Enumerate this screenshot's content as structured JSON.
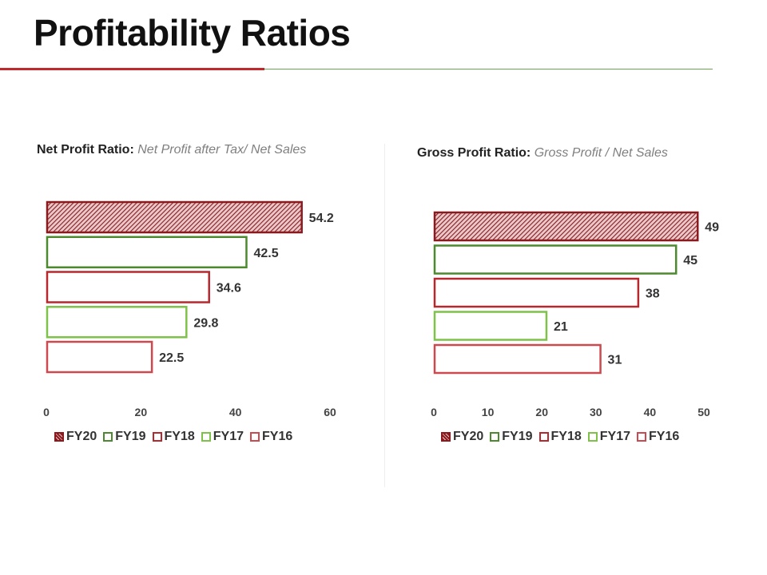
{
  "page": {
    "title": "Profitability Ratios"
  },
  "series_styles": {
    "FY20": {
      "stroke": "#8b1a1f",
      "hatched": true
    },
    "FY19": {
      "stroke": "#4d8a2f",
      "hatched": false
    },
    "FY18": {
      "stroke": "#b7282e",
      "hatched": false
    },
    "FY17": {
      "stroke": "#7fc24a",
      "hatched": false
    },
    "FY16": {
      "stroke": "#cc4a4f",
      "hatched": false
    }
  },
  "chart_data": [
    {
      "type": "bar",
      "orientation": "horizontal",
      "title_label": "Net Profit Ratio:",
      "title_formula": "Net Profit after Tax/ Net Sales",
      "categories": [
        "FY20",
        "FY19",
        "FY18",
        "FY17",
        "FY16"
      ],
      "values": [
        54.2,
        42.5,
        34.6,
        29.8,
        22.5
      ],
      "value_labels": [
        "54.2",
        "42.5",
        "34.6",
        "29.8",
        "22.5"
      ],
      "xlim": [
        0,
        60
      ],
      "xticks": [
        "0",
        "20",
        "40",
        "60"
      ],
      "grid": false,
      "legend": [
        "FY20",
        "FY19",
        "FY18",
        "FY17",
        "FY16"
      ],
      "legend_position": "bottom"
    },
    {
      "type": "bar",
      "orientation": "horizontal",
      "title_label": "Gross Profit Ratio:",
      "title_formula": "Gross Profit / Net Sales",
      "categories": [
        "FY20",
        "FY19",
        "FY18",
        "FY17",
        "FY16"
      ],
      "values": [
        49,
        45,
        38,
        21,
        31
      ],
      "value_labels": [
        "49",
        "45",
        "38",
        "21",
        "31"
      ],
      "xlim": [
        0,
        50
      ],
      "xticks": [
        "0",
        "10",
        "20",
        "30",
        "40",
        "50"
      ],
      "grid": false,
      "legend": [
        "FY20",
        "FY19",
        "FY18",
        "FY17",
        "FY16"
      ],
      "legend_position": "bottom"
    }
  ]
}
